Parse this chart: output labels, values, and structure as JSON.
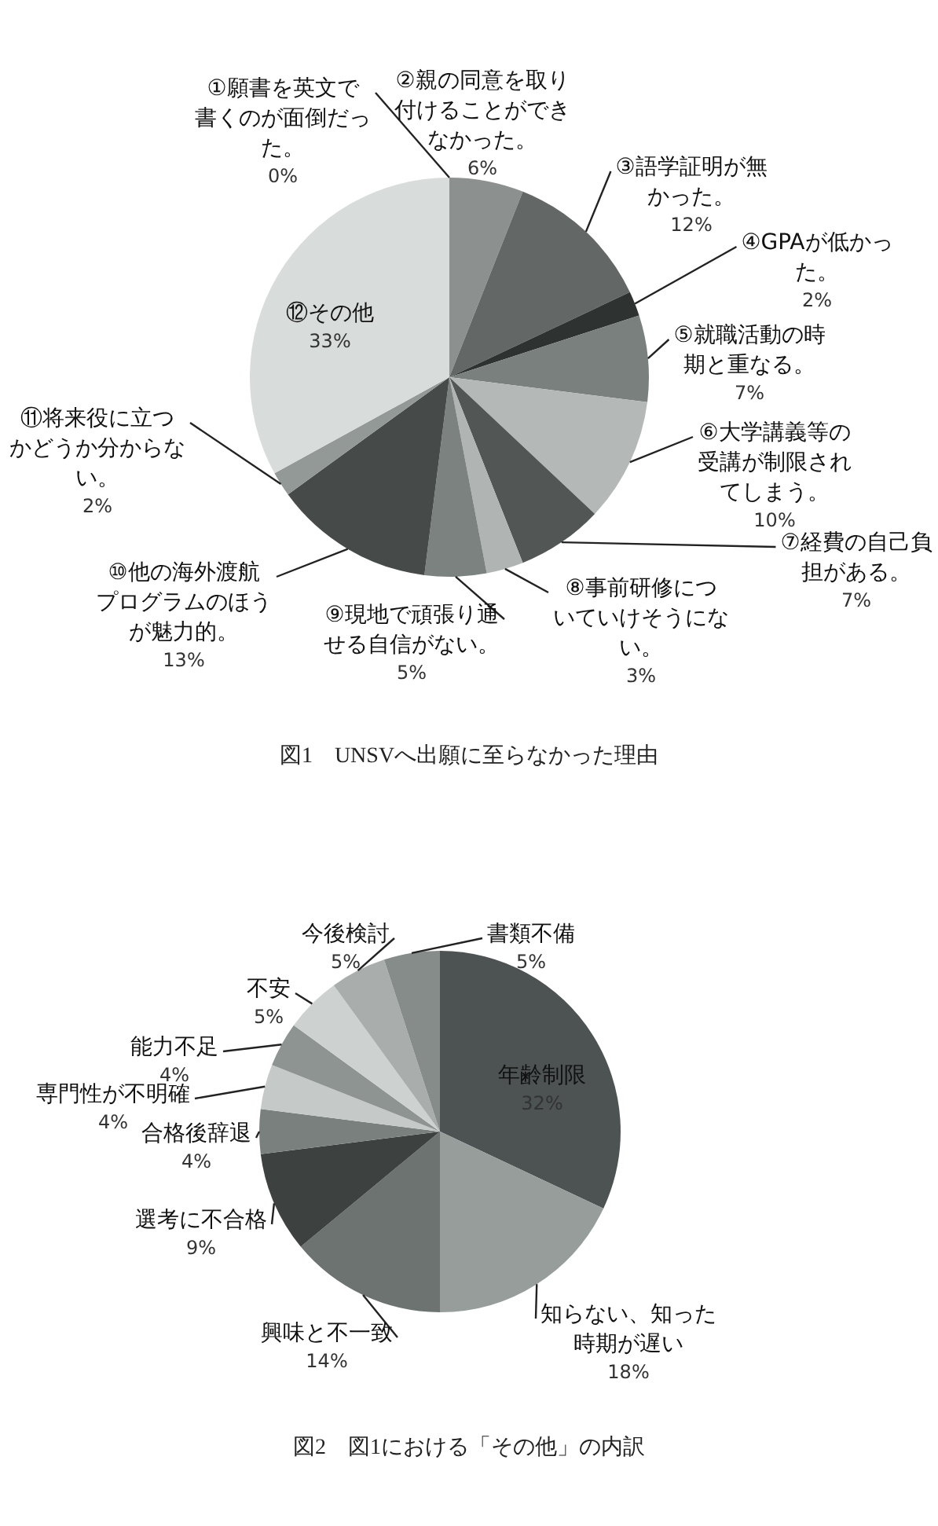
{
  "chart_data": [
    {
      "type": "pie",
      "categories": [
        "①願書を英文で書くのが面倒だった。",
        "②親の同意を取り付けることができなかった。",
        "③語学証明が無かった。",
        "④GPAが低かった。",
        "⑤就職活動の時期と重なる。",
        "⑥大学講義等の受講が制限されてしまう。",
        "⑦経費の自己負担がある。",
        "⑧事前研修についていけそうにない。",
        "⑨現地で頑張り通せる自信がない。",
        "⑩他の海外渡航プログラムのほうが魅力的。",
        "⑪将来役に立つかどうか分からない。",
        "⑫その他"
      ],
      "values": [
        0,
        6,
        12,
        2,
        7,
        10,
        7,
        3,
        5,
        13,
        2,
        33
      ],
      "value_labels": [
        "0%",
        "6%",
        "12%",
        "2%",
        "7%",
        "10%",
        "7%",
        "3%",
        "5%",
        "13%",
        "2%",
        "33%"
      ],
      "colors": [
        "#a0a5a3",
        "#8c918f",
        "#636866",
        "#2e3230",
        "#7a807e",
        "#b4b9b7",
        "#525756",
        "#b0b5b3",
        "#7b8280",
        "#464b4a",
        "#939997",
        "#d8dcdb"
      ],
      "legend": false,
      "annotations": [
        "図1　UNSVへ出願に至らなかった理由"
      ]
    },
    {
      "type": "pie",
      "categories": [
        "年齢制限",
        "知らない、知った時期が遅い",
        "興味と不一致",
        "選考に不合格",
        "合格後辞退",
        "専門性が不明確",
        "能力不足",
        "不安",
        "今後検討",
        "書類不備"
      ],
      "values": [
        32,
        18,
        14,
        9,
        4,
        4,
        4,
        5,
        5,
        5
      ],
      "value_labels": [
        "32%",
        "18%",
        "14%",
        "9%",
        "4%",
        "4%",
        "4%",
        "5%",
        "5%",
        "5%"
      ],
      "colors": [
        "#4d5352",
        "#969d9b",
        "#6c7371",
        "#3d4241",
        "#7a807e",
        "#c5cac8",
        "#8e9492",
        "#cdd2d0",
        "#a9aeac",
        "#868c8a"
      ],
      "legend": false,
      "annotations": [
        "図2　図1における「その他」の内訳"
      ]
    }
  ]
}
